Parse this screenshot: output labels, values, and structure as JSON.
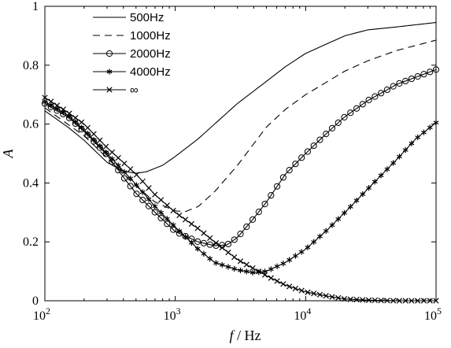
{
  "chart_data": {
    "type": "line",
    "xlabel": {
      "var": "f",
      "unit": " / Hz"
    },
    "ylabel": "A",
    "x_scale": "log",
    "xlim": [
      100,
      100000
    ],
    "ylim": [
      0,
      1
    ],
    "x_ticks": [
      {
        "base": "10",
        "exp": "2",
        "value": 100
      },
      {
        "base": "10",
        "exp": "3",
        "value": 1000
      },
      {
        "base": "10",
        "exp": "4",
        "value": 10000
      },
      {
        "base": "10",
        "exp": "5",
        "value": 100000
      }
    ],
    "y_ticks": [
      {
        "label": "0",
        "value": 0
      },
      {
        "label": "0.2",
        "value": 0.2
      },
      {
        "label": "0.4",
        "value": 0.4
      },
      {
        "label": "0.6",
        "value": 0.6
      },
      {
        "label": "0.8",
        "value": 0.8
      },
      {
        "label": "1",
        "value": 1
      }
    ],
    "grid": false,
    "legend_position": "top-left",
    "series": [
      {
        "name": "500Hz",
        "style": "solid",
        "marker": "none",
        "color": "#000000",
        "points": [
          [
            100,
            0.645
          ],
          [
            150,
            0.59
          ],
          [
            200,
            0.545
          ],
          [
            300,
            0.47
          ],
          [
            400,
            0.44
          ],
          [
            500,
            0.433
          ],
          [
            600,
            0.438
          ],
          [
            800,
            0.46
          ],
          [
            1000,
            0.49
          ],
          [
            1500,
            0.55
          ],
          [
            2000,
            0.6
          ],
          [
            3000,
            0.67
          ],
          [
            5000,
            0.745
          ],
          [
            7000,
            0.795
          ],
          [
            10000,
            0.84
          ],
          [
            20000,
            0.9
          ],
          [
            30000,
            0.92
          ],
          [
            50000,
            0.93
          ],
          [
            100000,
            0.945
          ]
        ]
      },
      {
        "name": "1000Hz",
        "style": "dashed",
        "marker": "none",
        "color": "#000000",
        "points": [
          [
            100,
            0.655
          ],
          [
            200,
            0.56
          ],
          [
            300,
            0.485
          ],
          [
            500,
            0.39
          ],
          [
            700,
            0.335
          ],
          [
            1000,
            0.305
          ],
          [
            1200,
            0.303
          ],
          [
            1500,
            0.32
          ],
          [
            2000,
            0.37
          ],
          [
            3000,
            0.46
          ],
          [
            5000,
            0.59
          ],
          [
            7000,
            0.65
          ],
          [
            10000,
            0.7
          ],
          [
            20000,
            0.78
          ],
          [
            30000,
            0.815
          ],
          [
            50000,
            0.85
          ],
          [
            100000,
            0.885
          ]
        ]
      },
      {
        "name": "2000Hz",
        "style": "solid",
        "marker": "circle",
        "color": "#000000",
        "points": [
          [
            100,
            0.67
          ],
          [
            150,
            0.625
          ],
          [
            200,
            0.575
          ],
          [
            300,
            0.495
          ],
          [
            400,
            0.42
          ],
          [
            500,
            0.365
          ],
          [
            700,
            0.3
          ],
          [
            1000,
            0.235
          ],
          [
            1500,
            0.2
          ],
          [
            2000,
            0.187
          ],
          [
            2500,
            0.19
          ],
          [
            3000,
            0.215
          ],
          [
            4000,
            0.28
          ],
          [
            5000,
            0.335
          ],
          [
            7000,
            0.43
          ],
          [
            10000,
            0.5
          ],
          [
            15000,
            0.575
          ],
          [
            20000,
            0.625
          ],
          [
            30000,
            0.68
          ],
          [
            50000,
            0.735
          ],
          [
            100000,
            0.785
          ]
        ]
      },
      {
        "name": "4000Hz",
        "style": "solid",
        "marker": "star",
        "color": "#000000",
        "points": [
          [
            100,
            0.675
          ],
          [
            150,
            0.63
          ],
          [
            200,
            0.58
          ],
          [
            300,
            0.5
          ],
          [
            500,
            0.395
          ],
          [
            700,
            0.32
          ],
          [
            1000,
            0.25
          ],
          [
            1500,
            0.175
          ],
          [
            2000,
            0.13
          ],
          [
            3000,
            0.105
          ],
          [
            4000,
            0.095
          ],
          [
            5000,
            0.1
          ],
          [
            7000,
            0.13
          ],
          [
            10000,
            0.175
          ],
          [
            15000,
            0.245
          ],
          [
            20000,
            0.3
          ],
          [
            30000,
            0.38
          ],
          [
            50000,
            0.48
          ],
          [
            70000,
            0.55
          ],
          [
            100000,
            0.605
          ]
        ]
      },
      {
        "name": "∞",
        "style": "solid",
        "marker": "x",
        "color": "#000000",
        "points": [
          [
            100,
            0.69
          ],
          [
            150,
            0.64
          ],
          [
            200,
            0.6
          ],
          [
            300,
            0.52
          ],
          [
            500,
            0.43
          ],
          [
            700,
            0.36
          ],
          [
            1000,
            0.3
          ],
          [
            1500,
            0.245
          ],
          [
            2000,
            0.2
          ],
          [
            3000,
            0.14
          ],
          [
            5000,
            0.085
          ],
          [
            7000,
            0.053
          ],
          [
            10000,
            0.03
          ],
          [
            15000,
            0.015
          ],
          [
            20000,
            0.006
          ],
          [
            30000,
            0.002
          ],
          [
            50000,
            0
          ],
          [
            100000,
            0
          ]
        ]
      }
    ]
  }
}
